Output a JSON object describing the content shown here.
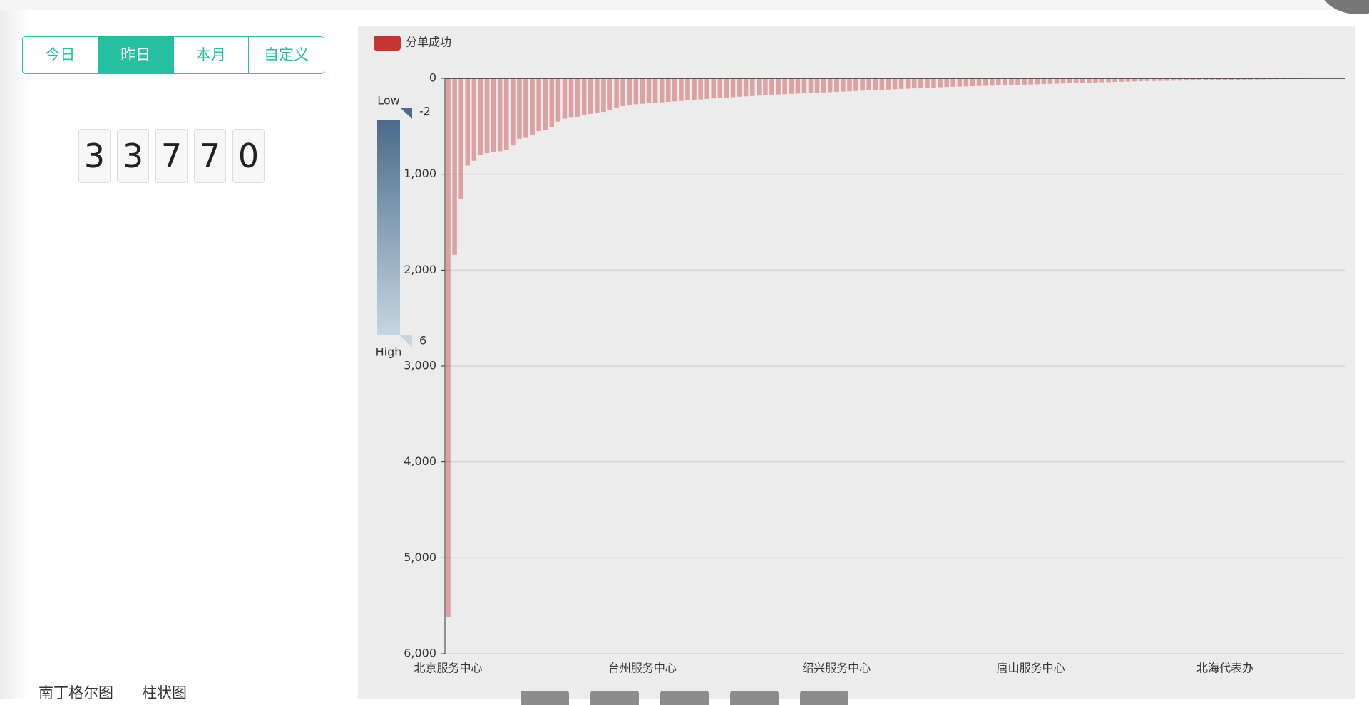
{
  "tabs": [
    "今日",
    "昨日",
    "本月",
    "自定义"
  ],
  "active_tab": 1,
  "counter_digits": [
    "3",
    "3",
    "7",
    "7",
    "0"
  ],
  "bottom_tabs": [
    "南丁格尔图",
    "柱状图"
  ],
  "chart_data": {
    "type": "bar",
    "series": [
      {
        "name": "分单成功",
        "color": "#c23531",
        "values": [
          5620,
          1840,
          1260,
          910,
          860,
          800,
          780,
          770,
          760,
          750,
          700,
          630,
          620,
          590,
          550,
          540,
          510,
          450,
          420,
          410,
          400,
          380,
          370,
          360,
          350,
          330,
          310,
          290,
          280,
          270,
          265,
          260,
          255,
          250,
          245,
          240,
          235,
          230,
          225,
          220,
          215,
          210,
          205,
          200,
          196,
          192,
          188,
          184,
          180,
          176,
          172,
          168,
          165,
          162,
          159,
          156,
          153,
          150,
          147,
          144,
          141,
          138,
          135,
          132,
          129,
          126,
          123,
          120,
          117,
          114,
          111,
          108,
          105,
          102,
          99,
          96,
          93,
          90,
          88,
          86,
          84,
          82,
          80,
          78,
          76,
          74,
          72,
          70,
          68,
          66,
          64,
          62,
          60,
          58,
          56,
          54,
          52,
          50,
          48,
          46,
          44,
          42,
          40,
          38,
          36,
          34,
          32,
          30,
          29,
          28,
          27,
          26,
          25,
          24,
          23,
          22,
          21,
          20,
          19,
          18,
          17,
          16,
          15,
          14,
          13,
          12,
          11,
          10,
          9,
          8,
          7,
          6,
          5,
          4,
          3,
          2,
          1,
          1,
          1
        ]
      }
    ],
    "categories": [
      "北京服务中心",
      null,
      null,
      null,
      null,
      null,
      null,
      null,
      null,
      null,
      null,
      null,
      null,
      null,
      null,
      null,
      null,
      null,
      null,
      null,
      null,
      null,
      null,
      null,
      null,
      null,
      null,
      null,
      null,
      null,
      "台州服务中心",
      null,
      null,
      null,
      null,
      null,
      null,
      null,
      null,
      null,
      null,
      null,
      null,
      null,
      null,
      null,
      null,
      null,
      null,
      null,
      null,
      null,
      null,
      null,
      null,
      null,
      null,
      null,
      null,
      null,
      "绍兴服务中心",
      null,
      null,
      null,
      null,
      null,
      null,
      null,
      null,
      null,
      null,
      null,
      null,
      null,
      null,
      null,
      null,
      null,
      null,
      null,
      null,
      null,
      null,
      null,
      null,
      null,
      null,
      null,
      null,
      null,
      "唐山服务中心",
      null,
      null,
      null,
      null,
      null,
      null,
      null,
      null,
      null,
      null,
      null,
      null,
      null,
      null,
      null,
      null,
      null,
      null,
      null,
      null,
      null,
      null,
      null,
      null,
      null,
      null,
      null,
      null,
      null,
      "北海代表办",
      null,
      null,
      null,
      null,
      null,
      null,
      null,
      null,
      null,
      null,
      null,
      null,
      null,
      null,
      null,
      null,
      null,
      null
    ],
    "ylim": [
      0,
      6000
    ],
    "y_inverted": true,
    "yticks": [
      0,
      {
        "value": 1000,
        "label": "1,000"
      },
      {
        "value": 2000,
        "label": "2,000"
      },
      {
        "value": 3000,
        "label": "3,000"
      },
      {
        "value": 4000,
        "label": "4,000"
      },
      {
        "value": 5000,
        "label": "5,000"
      },
      {
        "value": 6000,
        "label": "6,000"
      }
    ],
    "grid": true,
    "visual_map": {
      "low_text": "Low",
      "high_text": "High",
      "range": [
        -2,
        6
      ],
      "colors": [
        "#4a6b89",
        "#c5d6e2"
      ]
    }
  }
}
